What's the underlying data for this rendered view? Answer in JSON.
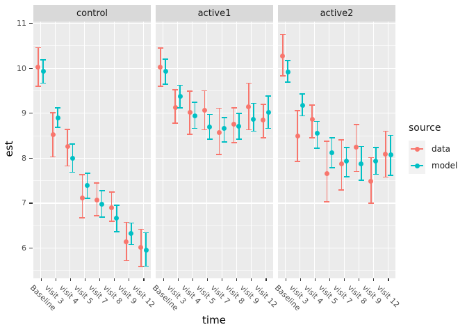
{
  "chart_data": {
    "type": "scatter",
    "subtype": "pointrange-with-errorbars",
    "title": "",
    "xlabel": "time",
    "ylabel": "est",
    "facets": [
      "control",
      "active1",
      "active2"
    ],
    "categories": [
      "Baseline",
      "visit 3",
      "visit 4",
      "visit 5",
      "visit 7",
      "visit 8",
      "visit 9",
      "visit 12"
    ],
    "ylim": [
      5.33,
      11.04
    ],
    "yticks": [
      6,
      7,
      8,
      9,
      10,
      11
    ],
    "grid": "major-and-minor-horizontal, major-vertical, white on grey panel",
    "legend": {
      "title": "source",
      "position": "right",
      "entries": [
        {
          "label": "data",
          "color": "#F8766D"
        },
        {
          "label": "model",
          "color": "#00BFC4"
        }
      ]
    },
    "colors": {
      "panel_background": "#EBEBEB",
      "strip_background": "#D9D9D9",
      "gridline": "#FFFFFF",
      "axis_text": "#4D4D4D",
      "data_series": "#F8766D",
      "model_series": "#00BFC4"
    },
    "panels": [
      {
        "facet": "control",
        "data": {
          "est": [
            10.02,
            8.52,
            8.26,
            7.12,
            7.07,
            6.9,
            6.14,
            6.01
          ],
          "lo": [
            9.6,
            8.03,
            7.83,
            6.67,
            6.72,
            6.6,
            5.72,
            5.59
          ],
          "hi": [
            10.46,
            9.01,
            8.64,
            7.63,
            7.45,
            7.25,
            6.57,
            6.42
          ]
        },
        "model": {
          "est": [
            9.93,
            8.89,
            8.0,
            7.39,
            6.97,
            6.67,
            6.32,
            5.96
          ],
          "lo": [
            9.67,
            8.69,
            7.69,
            7.11,
            6.69,
            6.36,
            6.08,
            5.6
          ],
          "hi": [
            10.19,
            9.12,
            8.31,
            7.66,
            7.28,
            6.95,
            6.56,
            6.34
          ]
        }
      },
      {
        "facet": "active1",
        "data": {
          "est": [
            10.02,
            9.13,
            9.02,
            9.07,
            8.57,
            8.75,
            9.15,
            8.85
          ],
          "lo": [
            9.6,
            8.78,
            8.53,
            8.63,
            8.08,
            8.35,
            8.63,
            8.45
          ],
          "hi": [
            10.45,
            9.52,
            9.49,
            9.5,
            9.11,
            9.12,
            9.67,
            9.2
          ]
        },
        "model": {
          "est": [
            9.93,
            9.38,
            8.94,
            8.7,
            8.66,
            8.71,
            8.87,
            9.02
          ],
          "lo": [
            9.65,
            9.12,
            8.66,
            8.42,
            8.36,
            8.42,
            8.6,
            8.66
          ],
          "hi": [
            10.2,
            9.62,
            9.24,
            8.97,
            8.9,
            9.0,
            9.22,
            9.38
          ]
        }
      },
      {
        "facet": "active2",
        "data": {
          "est": [
            10.28,
            8.5,
            8.86,
            7.66,
            7.87,
            8.24,
            7.48,
            8.09
          ],
          "lo": [
            9.83,
            7.93,
            8.45,
            7.03,
            7.29,
            7.7,
            7.0,
            7.58
          ],
          "hi": [
            10.75,
            9.06,
            9.18,
            8.38,
            8.41,
            8.75,
            8.01,
            8.6
          ]
        },
        "model": {
          "est": [
            9.92,
            9.17,
            8.56,
            8.12,
            7.93,
            7.87,
            7.94,
            8.08
          ],
          "lo": [
            9.69,
            8.94,
            8.22,
            7.79,
            7.59,
            7.51,
            7.64,
            7.62
          ],
          "hi": [
            10.17,
            9.43,
            8.82,
            8.45,
            8.24,
            8.26,
            8.24,
            8.51
          ]
        }
      }
    ]
  }
}
